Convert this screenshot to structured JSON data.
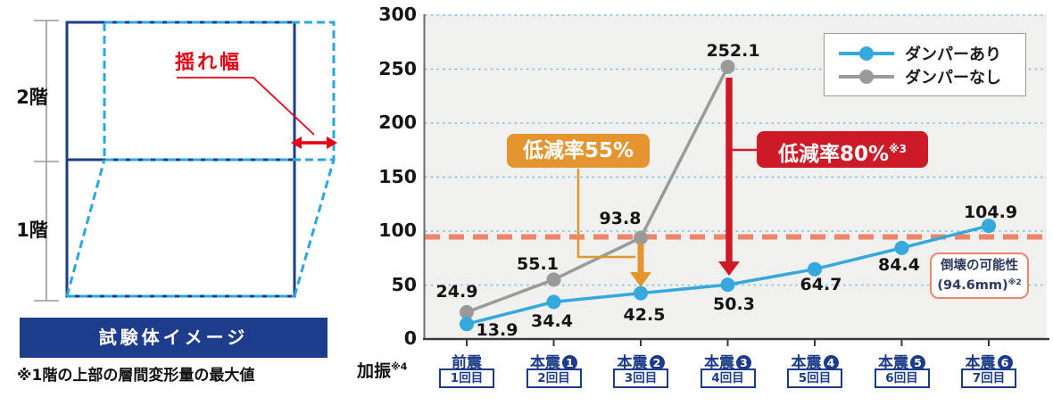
{
  "diagram": {
    "floor2_label": "2階",
    "floor1_label": "1階",
    "sway_label": "揺れ幅",
    "caption": "試験体イメージ",
    "note": "※1階の上部の層間変形量の最大値"
  },
  "chart_data": {
    "type": "line",
    "title": "",
    "ylabel": "",
    "xlabel": "",
    "ylim": [
      0,
      300
    ],
    "ytick_step": 50,
    "grid": true,
    "legend_position": "top-right",
    "categories": [
      {
        "main": "前震",
        "num": "",
        "trial": "1回目"
      },
      {
        "main": "本震",
        "num": "1",
        "trial": "2回目"
      },
      {
        "main": "本震",
        "num": "2",
        "trial": "3回目"
      },
      {
        "main": "本震",
        "num": "3",
        "trial": "4回目"
      },
      {
        "main": "本震",
        "num": "4",
        "trial": "5回目"
      },
      {
        "main": "本震",
        "num": "5",
        "trial": "6回目"
      },
      {
        "main": "本震",
        "num": "6",
        "trial": "7回目"
      }
    ],
    "x_axis_prefix": {
      "label": "加振",
      "sup": "※4"
    },
    "series": [
      {
        "name": "ダンパーあり",
        "color": "#35A9DD",
        "values": [
          13.9,
          34.4,
          42.5,
          50.3,
          64.7,
          84.4,
          104.9
        ]
      },
      {
        "name": "ダンパーなし",
        "color": "#9A9A9A",
        "values": [
          24.9,
          55.1,
          93.8,
          252.1
        ]
      }
    ],
    "threshold": {
      "value": 94.6,
      "color": "#EE8568",
      "label_line1": "倒壊の可能性",
      "label_line2": "(94.6mm)",
      "sup": "※2"
    },
    "annotations": [
      {
        "text": "低減率55%",
        "sup": "",
        "color": "#E5952F"
      },
      {
        "text": "低減率80%",
        "sup": "※3",
        "color": "#CE1A26"
      }
    ]
  },
  "colors": {
    "navy": "#1C3C8A",
    "banner_navy": "#1E3C8C",
    "blue_series": "#35A9DD",
    "gray_series": "#9A9A9A",
    "orange_callout": "#E5952F",
    "red_callout": "#CE1A26",
    "threshold_salmon": "#EE8568",
    "diagram_red": "#E60012",
    "gridline_blue": "#7ABCE3",
    "plot_bg": "#F0F0EE"
  }
}
